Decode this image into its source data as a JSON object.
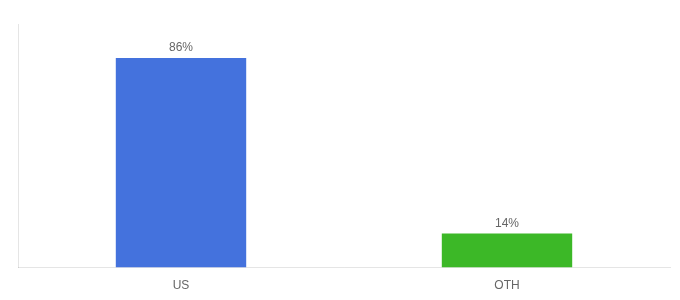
{
  "chart_data": {
    "type": "bar",
    "categories": [
      "US",
      "OTH"
    ],
    "values": [
      86,
      14
    ],
    "value_labels": [
      "86%",
      "14%"
    ],
    "colors": [
      "#4472DD",
      "#3CB827"
    ],
    "ylim": [
      0,
      100
    ],
    "grid": false,
    "legend": false,
    "data_labels": true,
    "tick_labels": "x"
  }
}
